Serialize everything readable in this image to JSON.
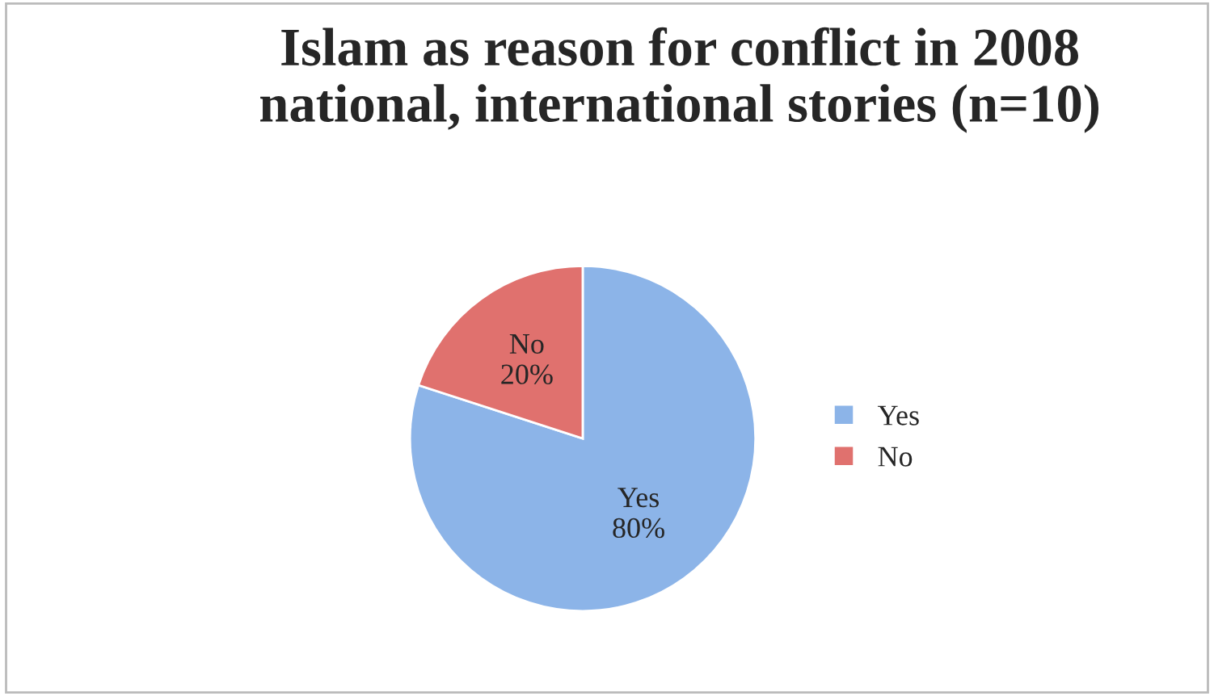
{
  "chart_data": {
    "type": "pie",
    "title": "Islam as reason for conflict in 2008\nnational, international stories (n=10)",
    "categories": [
      "Yes",
      "No"
    ],
    "values": [
      80,
      20
    ],
    "value_labels": [
      "80%",
      "20%"
    ],
    "colors": [
      "#8cb4e8",
      "#e0716e"
    ],
    "legend": "right"
  }
}
